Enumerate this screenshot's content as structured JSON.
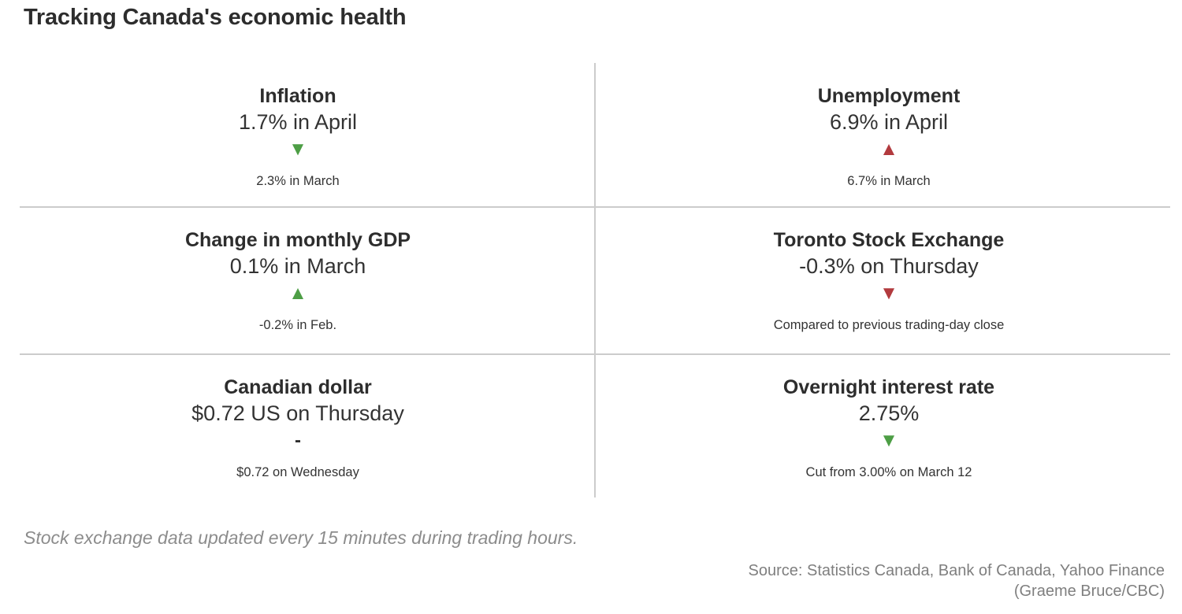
{
  "title": "Tracking Canada's economic health",
  "colors": {
    "positive_green": "#4d9e45",
    "negative_red": "#b23a3e",
    "neutral_dark": "#2e2e2e",
    "gridline": "#cccccc"
  },
  "cards": [
    {
      "title": "Inflation",
      "value": "1.7% in April",
      "direction": "down",
      "glyph": "▼",
      "color": "#4d9e45",
      "note": "2.3% in March"
    },
    {
      "title": "Unemployment",
      "value": "6.9% in April",
      "direction": "up",
      "glyph": "▲",
      "color": "#b23a3e",
      "note": "6.7% in March"
    },
    {
      "title": "Change in monthly GDP",
      "value": "0.1% in March",
      "direction": "up",
      "glyph": "▲",
      "color": "#4d9e45",
      "note": "-0.2% in Feb."
    },
    {
      "title": "Toronto Stock Exchange",
      "value": "-0.3% on Thursday",
      "direction": "down",
      "glyph": "▼",
      "color": "#b23a3e",
      "note": "Compared to previous trading-day close"
    },
    {
      "title": "Canadian dollar",
      "value": "$0.72 US on Thursday",
      "direction": "flat",
      "glyph": "-",
      "color": "#2e2e2e",
      "note": "$0.72 on Wednesday"
    },
    {
      "title": "Overnight interest rate",
      "value": "2.75%",
      "direction": "down",
      "glyph": "▼",
      "color": "#4d9e45",
      "note": "Cut from 3.00% on March 12"
    }
  ],
  "footnote": "Stock exchange data updated every 15 minutes during trading hours.",
  "source_line1": "Source: Statistics Canada, Bank of Canada, Yahoo Finance",
  "source_line2": "(Graeme Bruce/CBC)",
  "chart_data": {
    "type": "table",
    "title": "Tracking Canada's economic health",
    "metrics": [
      {
        "name": "Inflation",
        "current": 1.7,
        "unit": "%",
        "period": "April",
        "previous": 2.3,
        "previous_period": "March",
        "direction": "down"
      },
      {
        "name": "Unemployment",
        "current": 6.9,
        "unit": "%",
        "period": "April",
        "previous": 6.7,
        "previous_period": "March",
        "direction": "up"
      },
      {
        "name": "Change in monthly GDP",
        "current": 0.1,
        "unit": "%",
        "period": "March",
        "previous": -0.2,
        "previous_period": "Feb.",
        "direction": "up"
      },
      {
        "name": "Toronto Stock Exchange",
        "current": -0.3,
        "unit": "%",
        "period": "Thursday",
        "comparison": "Compared to previous trading-day close",
        "direction": "down"
      },
      {
        "name": "Canadian dollar",
        "current": 0.72,
        "unit": "$ US",
        "period": "Thursday",
        "previous": 0.72,
        "previous_period": "Wednesday",
        "direction": "flat"
      },
      {
        "name": "Overnight interest rate",
        "current": 2.75,
        "unit": "%",
        "previous": 3.0,
        "change_note": "Cut from 3.00% on March 12",
        "direction": "down"
      }
    ]
  }
}
